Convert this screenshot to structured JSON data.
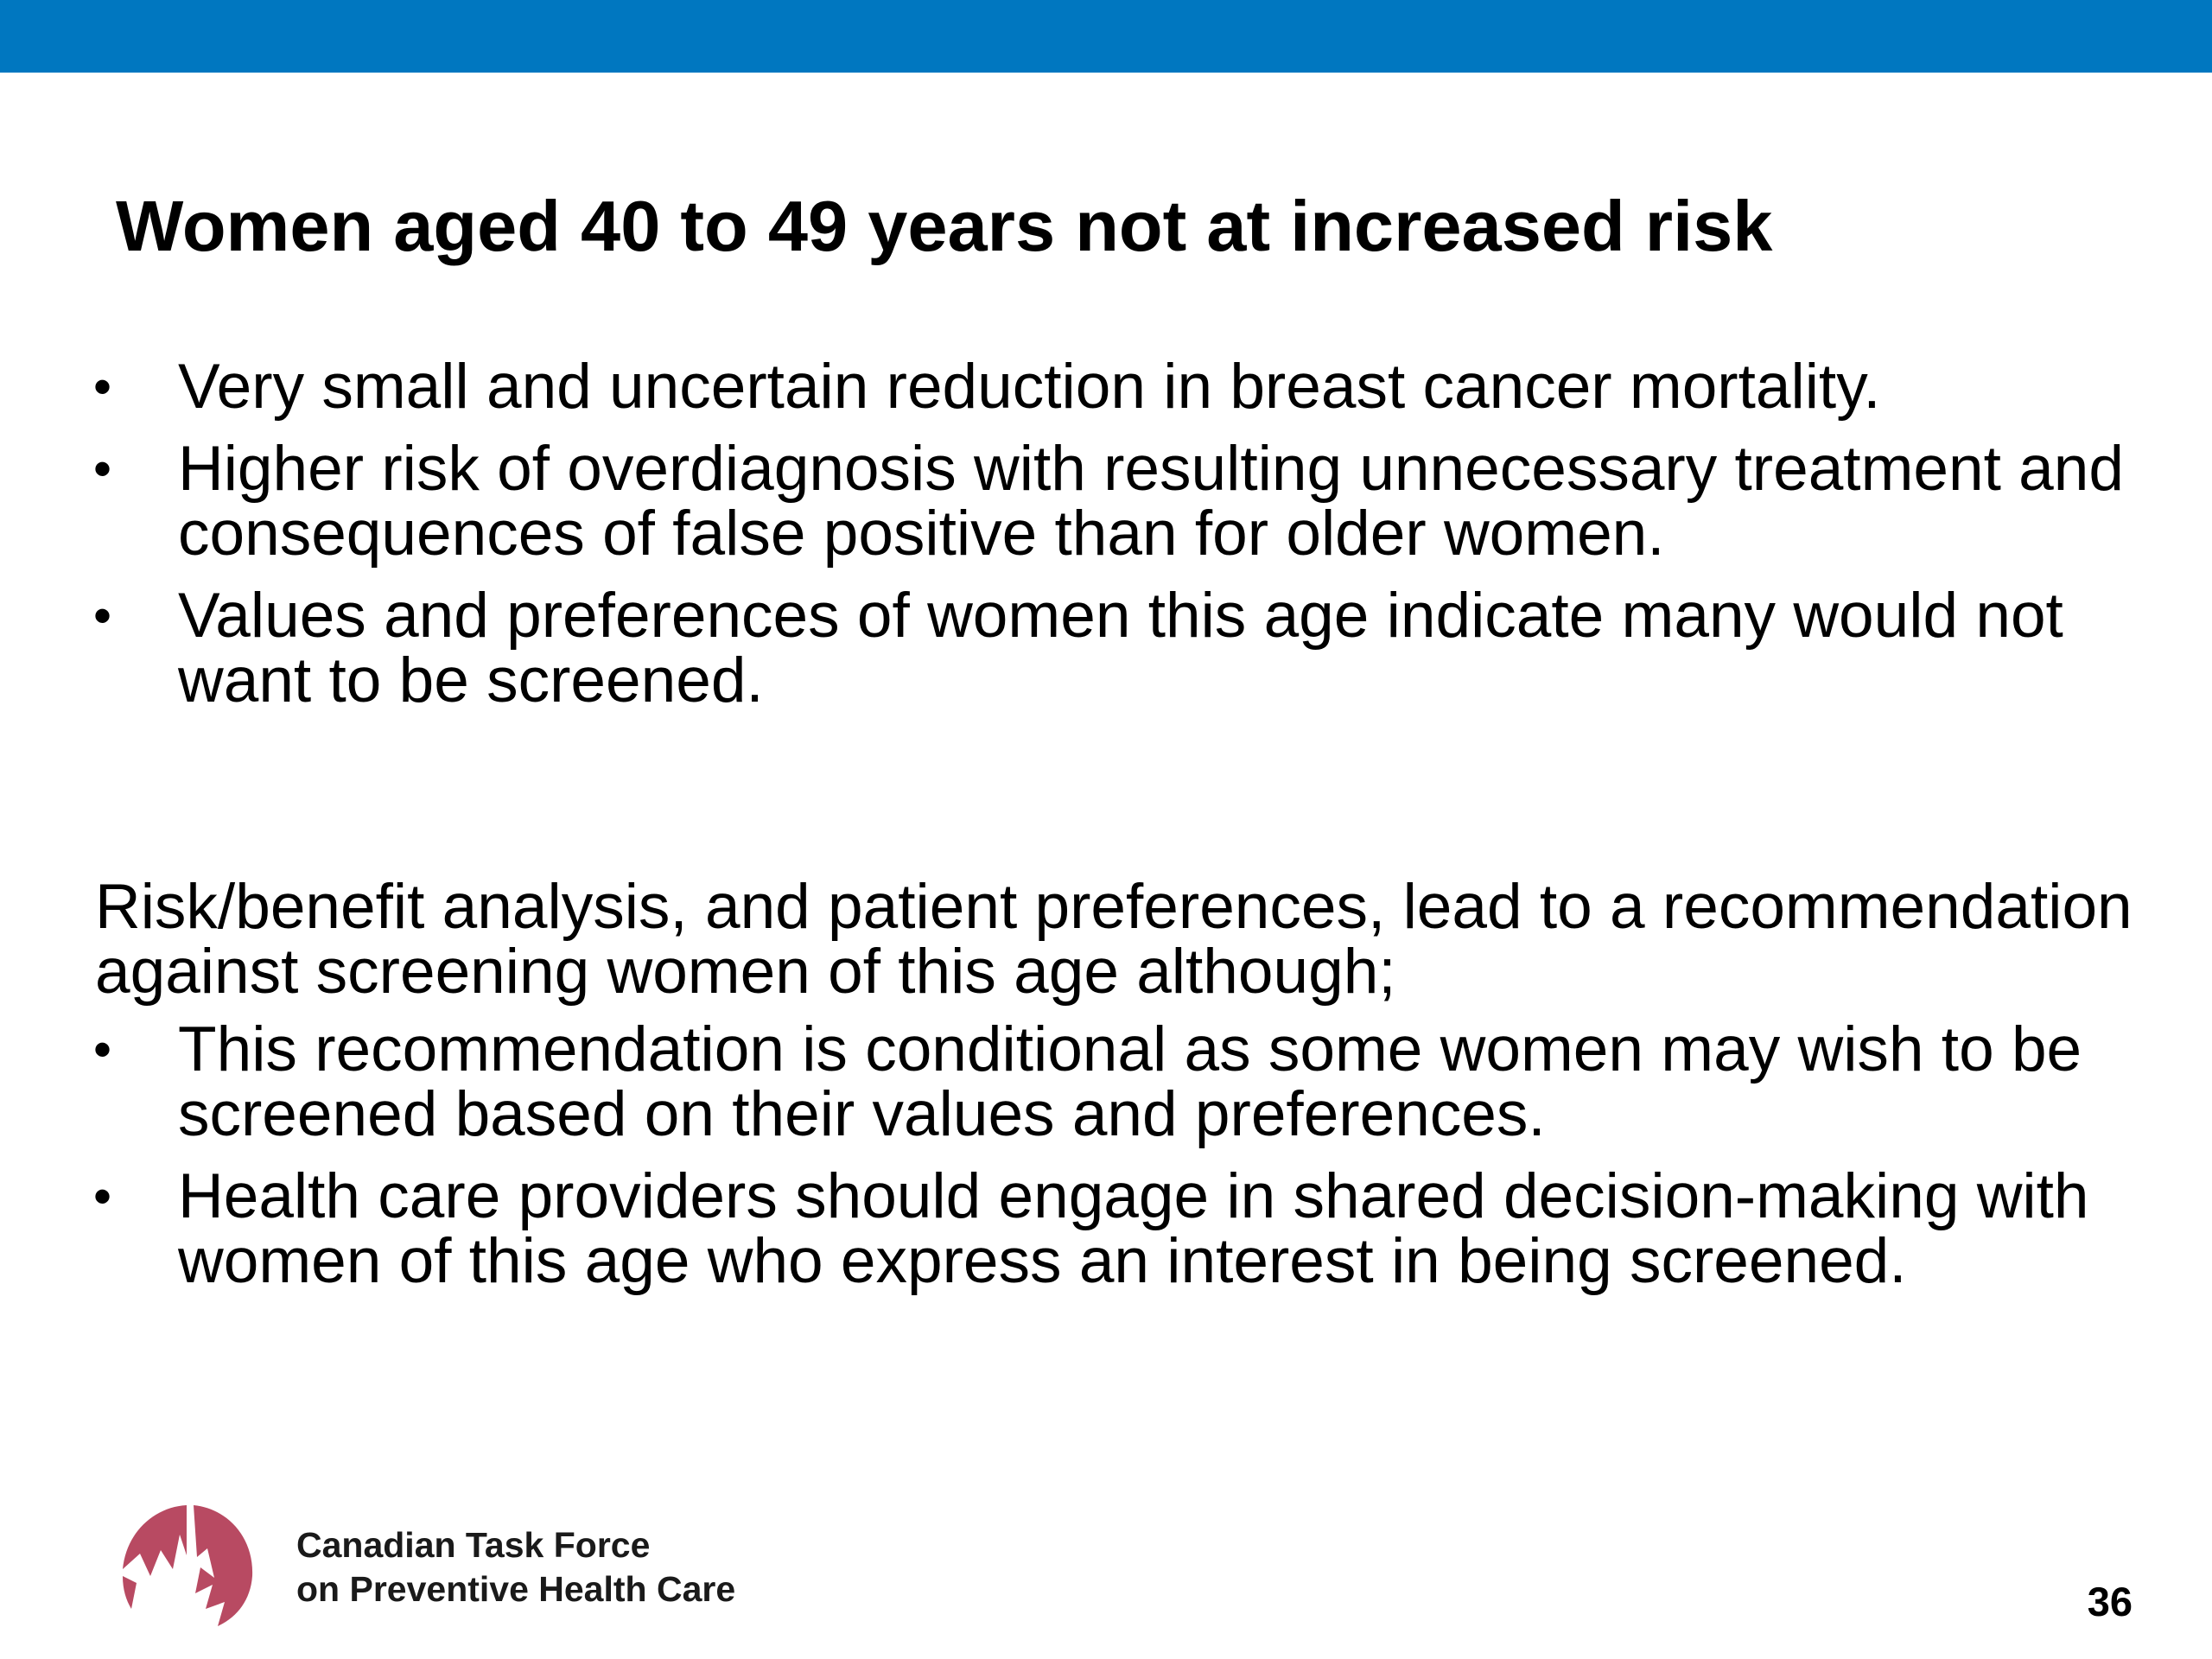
{
  "colors": {
    "header_bar": "#0077c0",
    "logo": "#b84a62"
  },
  "slide": {
    "title": "Women aged 40 to 49 years not at increased risk",
    "bullets_1": [
      "Very small and uncertain reduction in breast cancer mortality.",
      "Higher risk of overdiagnosis with resulting unnecessary treatment and consequences of false positive than for older women.",
      "Values and preferences of women this age indicate many would not want to be screened."
    ],
    "paragraph": "Risk/benefit analysis, and patient preferences, lead to a recommendation against screening women of this age although;",
    "bullets_2": [
      "This recommendation is conditional as some women may wish to be screened based on their values and preferences.",
      "Health care providers should engage in shared decision-making with women of this age who express an interest in being screened."
    ],
    "bullet_glyph": "•"
  },
  "footer": {
    "logo_icon": "maple-leaf-circle-icon",
    "org_line1": "Canadian Task Force",
    "org_line2": "on Preventive Health Care",
    "page_number": "36"
  }
}
